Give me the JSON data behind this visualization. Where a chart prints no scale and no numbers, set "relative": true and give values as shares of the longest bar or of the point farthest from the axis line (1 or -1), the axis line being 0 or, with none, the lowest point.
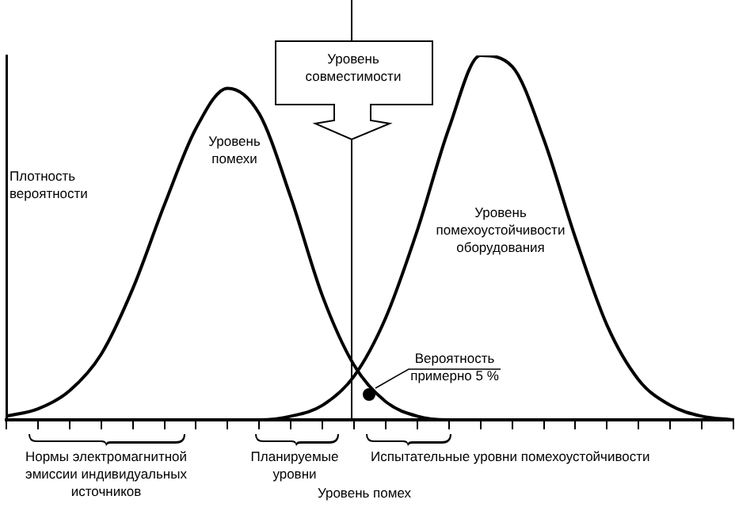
{
  "chart_data": {
    "type": "line",
    "relative": true,
    "xlabel": "Уровень помех",
    "ylabel": "Плотность вероятности",
    "legend": false,
    "marker": "none",
    "line_style": "solid",
    "categories": [
      null,
      null,
      null,
      null,
      null,
      null,
      null,
      null,
      null,
      null,
      null,
      null,
      null,
      null,
      null,
      null,
      null,
      null,
      null,
      null,
      null,
      null,
      null,
      null
    ],
    "series": [
      {
        "name": "Уровень помехи",
        "color": "#000000",
        "values": [
          0.01,
          0.03,
          0.08,
          0.18,
          0.36,
          0.59,
          0.8,
          0.91,
          0.84,
          0.61,
          0.34,
          0.15,
          0.05,
          0.01,
          0.0,
          0.0,
          0.0,
          null,
          null,
          null,
          null,
          null,
          null,
          null
        ]
      },
      {
        "name": "Уровень помехоустойчивости оборудования",
        "color": "#000000",
        "values": [
          null,
          null,
          null,
          null,
          null,
          null,
          null,
          0.0,
          0.0,
          0.01,
          0.04,
          0.12,
          0.28,
          0.52,
          0.8,
          1,
          0.97,
          0.77,
          0.5,
          0.26,
          0.11,
          0.04,
          0.01,
          0.0
        ]
      }
    ],
    "annotations": [
      "Уровень совместимости",
      "Вероятность примерно 5 %",
      "Нормы электромагнитной эмиссии индивидуальных источников",
      "Планируемые уровни",
      "Испытательные уровни помехоустойчивости"
    ]
  }
}
